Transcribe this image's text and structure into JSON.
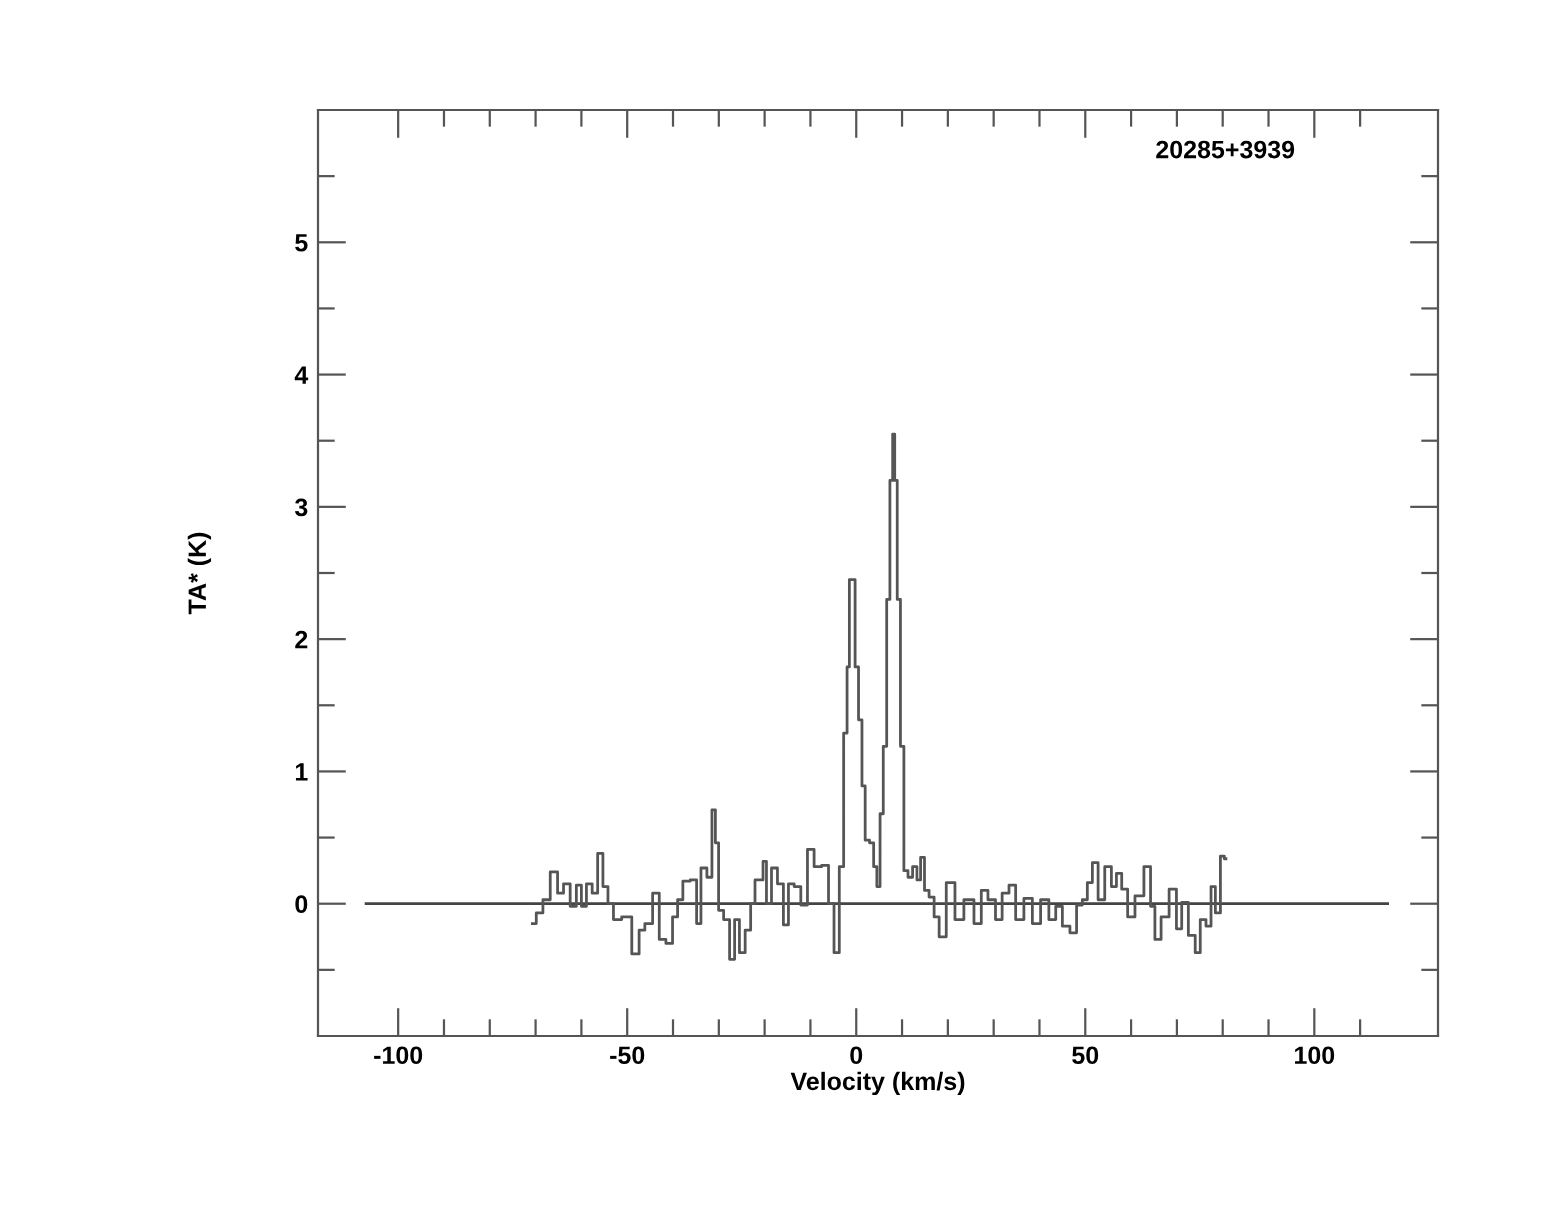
{
  "chart_data": {
    "type": "step",
    "xlabel": "Velocity (km/s)",
    "ylabel": "TA* (K)",
    "annotations": [
      "20285+3939"
    ],
    "xlim": [
      -117.5,
      127
    ],
    "ylim": [
      -1,
      6
    ],
    "xticks": [
      -100,
      {
        "value": -90,
        "label": null
      },
      {
        "value": -80,
        "label": null
      },
      {
        "value": -70,
        "label": null
      },
      {
        "value": -60,
        "label": null
      },
      -50,
      {
        "value": -40,
        "label": null
      },
      {
        "value": -30,
        "label": null
      },
      {
        "value": -20,
        "label": null
      },
      {
        "value": -10,
        "label": null
      },
      0,
      {
        "value": 10,
        "label": null
      },
      {
        "value": 20,
        "label": null
      },
      {
        "value": 30,
        "label": null
      },
      {
        "value": 40,
        "label": null
      },
      50,
      {
        "value": 60,
        "label": null
      },
      {
        "value": 70,
        "label": null
      },
      {
        "value": 80,
        "label": null
      },
      {
        "value": 90,
        "label": null
      },
      100,
      {
        "value": 110,
        "label": null
      }
    ],
    "yticks": [
      {
        "value": -0.5,
        "label": null
      },
      0,
      {
        "value": 0.5,
        "label": null
      },
      1,
      {
        "value": 1.5,
        "label": null
      },
      2,
      {
        "value": 2.5,
        "label": null
      },
      3,
      {
        "value": 3.5,
        "label": null
      },
      4,
      {
        "value": 4.5,
        "label": null
      },
      5,
      {
        "value": 5.5,
        "label": null
      }
    ],
    "grid": false,
    "legend": false,
    "series": [
      {
        "type": "line",
        "color": "#444444",
        "x": [
          -107,
          116
        ],
        "values": [
          0,
          0
        ]
      },
      {
        "color": "#555555",
        "x": [
          -70.7,
          -69,
          -67.8,
          -65.8,
          -64.6,
          -63.2,
          -61.7,
          -60.5,
          -59.5,
          -58.3,
          -57.0,
          -55.9,
          -54.7,
          -53.7,
          -52.3,
          -50.1,
          -47.9,
          -46.9,
          -45.4,
          -43.5,
          -42.5,
          -40.6,
          -39.6,
          -38.4,
          -37.3,
          -35.2,
          -34.5,
          -33.3,
          -31.9,
          -31.1,
          -30.4,
          -29.7,
          -28.2,
          -27.1,
          -26.0,
          -25.0,
          -23.5,
          -22.6,
          -21.6,
          -20.6,
          -20.1,
          -19.1,
          -17.9,
          -16.5,
          -15.3,
          -14.3,
          -12.8,
          -11.4,
          -9.9,
          -8.5,
          -6.6,
          -5.5,
          -4.2,
          -3.2,
          -2.3,
          -1.7,
          -1.3,
          -0.6,
          0.1,
          0.9,
          1.6,
          2.3,
          3.5,
          4.1,
          4.9,
          5.5,
          6.3,
          7.0,
          7.7,
          8.2,
          8.6,
          9.3,
          10.0,
          10.8,
          11.8,
          12.8,
          13.7,
          14.4,
          15.4,
          16.4,
          17.6,
          18.6,
          20.7,
          22.4,
          24.6,
          26.8,
          27.8,
          29.7,
          31.1,
          32.6,
          34.1,
          35.5,
          37.7,
          39.2,
          41.3,
          42.8,
          44.3,
          45.7,
          47.6,
          48.6,
          50.1,
          50.8,
          52.3,
          53.3,
          55.2,
          56.2,
          57.4,
          58.5,
          60.0,
          61.7,
          63.9,
          64.6,
          65.8,
          67.3,
          69.3,
          70.5,
          71.6,
          73.4,
          74.6,
          75.6,
          77.1,
          77.8,
          79.0,
          80.0,
          80.7
        ],
        "values": [
          -0.15,
          -0.07,
          0.03,
          0.24,
          0.08,
          0.15,
          -0.02,
          0.14,
          -0.02,
          0.15,
          0.08,
          0.38,
          0.13,
          0.0,
          -0.12,
          -0.1,
          -0.38,
          -0.2,
          -0.15,
          0.08,
          -0.27,
          -0.3,
          -0.1,
          0.03,
          0.17,
          0.18,
          -0.15,
          0.27,
          0.2,
          0.71,
          0.46,
          -0.05,
          -0.12,
          -0.42,
          -0.12,
          -0.37,
          -0.2,
          0.0,
          0.18,
          0.18,
          0.32,
          0.0,
          0.27,
          0.15,
          -0.16,
          0.15,
          0.13,
          -0.01,
          0.41,
          0.28,
          0.29,
          0.0,
          -0.37,
          0.28,
          1.29,
          1.79,
          2.45,
          2.45,
          1.79,
          1.39,
          0.89,
          0.48,
          0.46,
          0.28,
          0.13,
          0.68,
          1.19,
          2.3,
          3.2,
          3.55,
          3.2,
          2.3,
          1.19,
          0.25,
          0.2,
          0.28,
          0.18,
          0.35,
          0.1,
          0.05,
          -0.1,
          -0.25,
          0.16,
          -0.12,
          0.03,
          -0.15,
          0.1,
          0.03,
          -0.12,
          0.08,
          0.14,
          -0.12,
          0.04,
          -0.15,
          0.03,
          -0.12,
          -0.02,
          -0.17,
          -0.22,
          -0.01,
          0.03,
          0.16,
          0.31,
          0.03,
          0.28,
          0.13,
          0.23,
          0.11,
          -0.1,
          0.06,
          0.28,
          -0.02,
          -0.27,
          -0.1,
          0.11,
          -0.19,
          0.01,
          -0.24,
          -0.37,
          -0.12,
          -0.17,
          0.13,
          -0.07,
          0.36,
          0.34
        ]
      }
    ]
  }
}
